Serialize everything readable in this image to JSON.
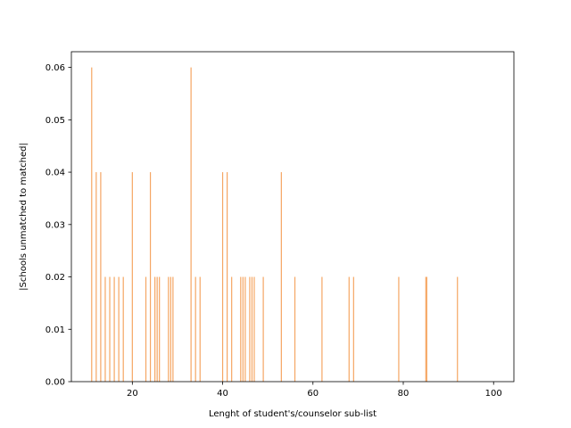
{
  "chart_data": {
    "type": "bar",
    "xlabel": "Lenght of student's/counselor sub-list",
    "ylabel": "|Schools unmatched to matched|",
    "xlim": [
      6.5,
      104.5
    ],
    "ylim": [
      0,
      0.063
    ],
    "xticks": [
      20,
      40,
      60,
      80,
      100
    ],
    "yticks": [
      0.0,
      0.01,
      0.02,
      0.03,
      0.04,
      0.05,
      0.06
    ],
    "xtick_labels": [
      "20",
      "40",
      "60",
      "80",
      "100"
    ],
    "ytick_labels": [
      "0.00",
      "0.01",
      "0.02",
      "0.03",
      "0.04",
      "0.05",
      "0.06"
    ],
    "grid": false,
    "legend": "none",
    "bar_color": "#f5a663",
    "series": [
      {
        "x": [
          11,
          12,
          13,
          14,
          15,
          16,
          17,
          18,
          20,
          23,
          24,
          25,
          25.5,
          26,
          28,
          28.5,
          29,
          33,
          34,
          35,
          40,
          41,
          42,
          44,
          44.5,
          45,
          46,
          46.5,
          47,
          49,
          53,
          56,
          62,
          68,
          69,
          79,
          85,
          85.2,
          92
        ],
        "values": [
          0.06,
          0.04,
          0.04,
          0.02,
          0.02,
          0.02,
          0.02,
          0.02,
          0.04,
          0.02,
          0.04,
          0.02,
          0.02,
          0.02,
          0.02,
          0.02,
          0.02,
          0.06,
          0.02,
          0.02,
          0.04,
          0.04,
          0.02,
          0.02,
          0.02,
          0.02,
          0.02,
          0.02,
          0.02,
          0.02,
          0.04,
          0.02,
          0.02,
          0.02,
          0.02,
          0.02,
          0.02,
          0.02,
          0.02
        ]
      }
    ]
  }
}
